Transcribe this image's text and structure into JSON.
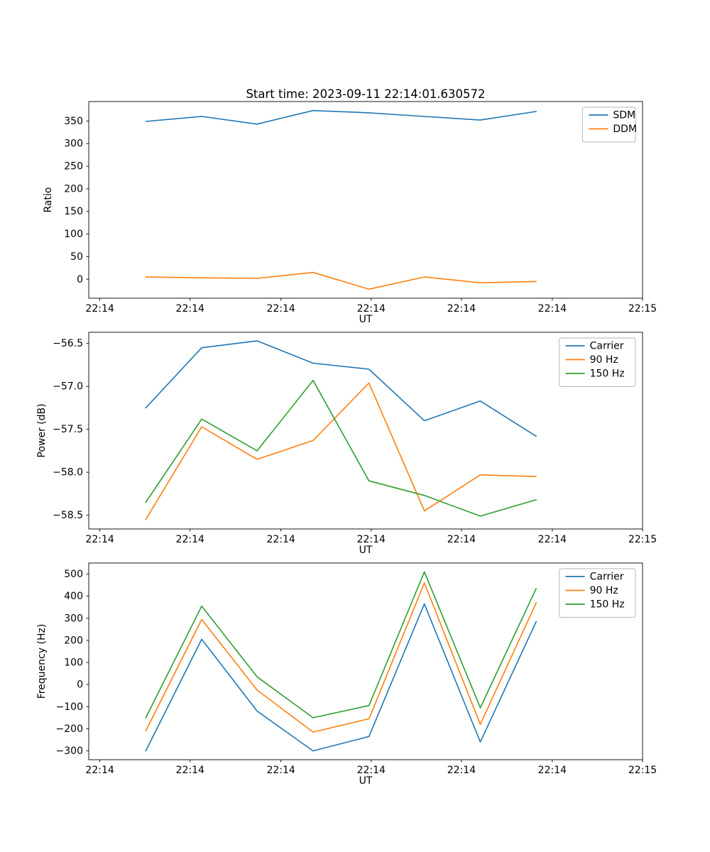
{
  "figure": {
    "title": "Start time: 2023-09-11 22:14:01.630572",
    "background": "#ffffff"
  },
  "palette": {
    "blue": "#1f77b4",
    "orange": "#ff7f0e",
    "green": "#2ca02c"
  },
  "chart_data": [
    {
      "name": "ratio",
      "type": "line",
      "xlabel": "UT",
      "ylabel": "Ratio",
      "xtick_labels": [
        "22:14",
        "22:14",
        "22:14",
        "22:14",
        "22:14",
        "22:14",
        "22:15"
      ],
      "xtick_pos": [
        0.02,
        0.183,
        0.347,
        0.51,
        0.673,
        0.837,
        1.0
      ],
      "x_pos": [
        0.103,
        0.204,
        0.304,
        0.405,
        0.506,
        0.606,
        0.707,
        0.808
      ],
      "ylim": [
        -42,
        393
      ],
      "ytick_values": [
        0,
        50,
        100,
        150,
        200,
        250,
        300,
        350
      ],
      "ytick_labels": [
        "0",
        "50",
        "100",
        "150",
        "200",
        "250",
        "300",
        "350"
      ],
      "grid": false,
      "legend_position": "upper right",
      "series": [
        {
          "name": "SDM",
          "color": "#1f77b4",
          "values": [
            349,
            360,
            343,
            373,
            368,
            360,
            352,
            371
          ]
        },
        {
          "name": "DDM",
          "color": "#ff7f0e",
          "values": [
            5,
            3,
            2,
            15,
            -22,
            5,
            -8,
            -5
          ]
        }
      ]
    },
    {
      "name": "power",
      "type": "line",
      "xlabel": "UT",
      "ylabel": "Power (dB)",
      "xtick_labels": [
        "22:14",
        "22:14",
        "22:14",
        "22:14",
        "22:14",
        "22:14",
        "22:15"
      ],
      "xtick_pos": [
        0.02,
        0.183,
        0.347,
        0.51,
        0.673,
        0.837,
        1.0
      ],
      "x_pos": [
        0.103,
        0.204,
        0.304,
        0.405,
        0.506,
        0.606,
        0.707,
        0.808
      ],
      "ylim": [
        -58.66,
        -56.37
      ],
      "ytick_values": [
        -58.5,
        -58.0,
        -57.5,
        -57.0,
        -56.5
      ],
      "ytick_labels": [
        "−58.5",
        "−58.0",
        "−57.5",
        "−57.0",
        "−56.5"
      ],
      "grid": false,
      "legend_position": "upper right",
      "series": [
        {
          "name": "Carrier",
          "color": "#1f77b4",
          "values": [
            -57.25,
            -56.55,
            -56.47,
            -56.73,
            -56.8,
            -57.4,
            -57.17,
            -57.58
          ]
        },
        {
          "name": "90 Hz",
          "color": "#ff7f0e",
          "values": [
            -58.55,
            -57.47,
            -57.85,
            -57.63,
            -56.96,
            -58.45,
            -58.03,
            -58.05
          ]
        },
        {
          "name": "150 Hz",
          "color": "#2ca02c",
          "values": [
            -58.35,
            -57.38,
            -57.75,
            -56.93,
            -58.1,
            -58.27,
            -58.51,
            -58.32
          ]
        }
      ]
    },
    {
      "name": "frequency",
      "type": "line",
      "xlabel": "UT",
      "ylabel": "Frequency (Hz)",
      "xtick_labels": [
        "22:14",
        "22:14",
        "22:14",
        "22:14",
        "22:14",
        "22:14",
        "22:15"
      ],
      "xtick_pos": [
        0.02,
        0.183,
        0.347,
        0.51,
        0.673,
        0.837,
        1.0
      ],
      "x_pos": [
        0.103,
        0.204,
        0.304,
        0.405,
        0.506,
        0.606,
        0.707,
        0.808
      ],
      "ylim": [
        -340,
        550
      ],
      "ytick_values": [
        -300,
        -200,
        -100,
        0,
        100,
        200,
        300,
        400,
        500
      ],
      "ytick_labels": [
        "−300",
        "−200",
        "−100",
        "0",
        "100",
        "200",
        "300",
        "400",
        "500"
      ],
      "grid": false,
      "legend_position": "upper right",
      "series": [
        {
          "name": "Carrier",
          "color": "#1f77b4",
          "values": [
            -300,
            205,
            -120,
            -300,
            -235,
            365,
            -260,
            285
          ]
        },
        {
          "name": "90 Hz",
          "color": "#ff7f0e",
          "values": [
            -210,
            295,
            -25,
            -215,
            -155,
            460,
            -180,
            370
          ]
        },
        {
          "name": "150 Hz",
          "color": "#2ca02c",
          "values": [
            -150,
            355,
            35,
            -150,
            -95,
            510,
            -105,
            435
          ]
        }
      ]
    }
  ]
}
